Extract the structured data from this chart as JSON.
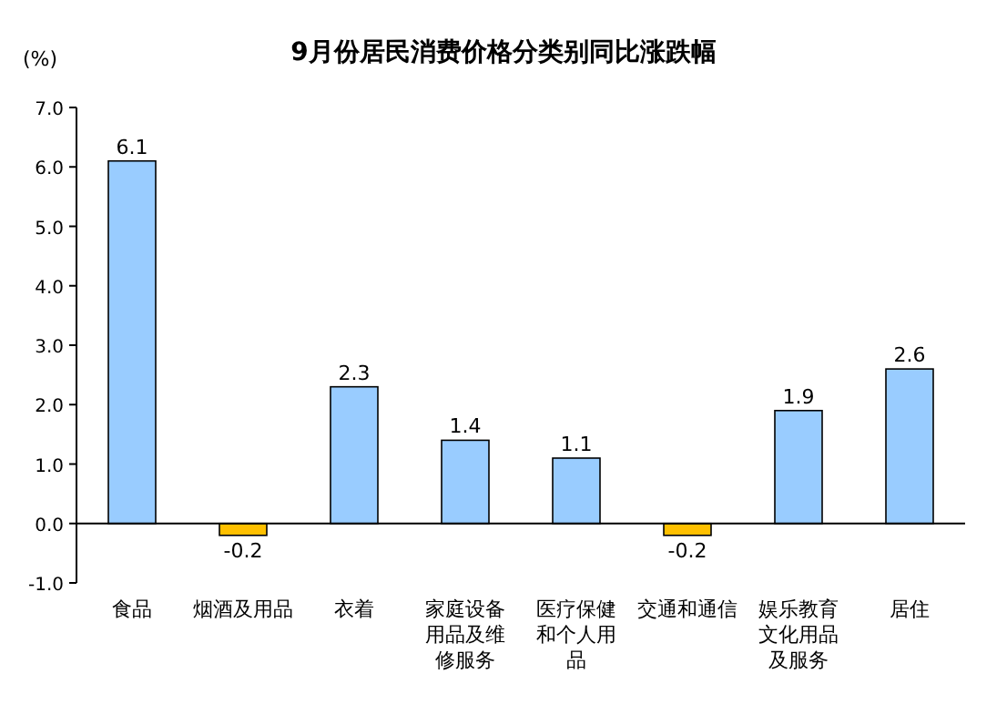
{
  "chart_data": {
    "type": "bar",
    "title": "9月份居民消费价格分类别同比涨跌幅",
    "ylabel": "(%)",
    "categories": [
      "食品",
      "烟酒及用品",
      "衣着",
      "家庭设备用品及维修服务",
      "医疗保健和个人用品",
      "交通和通信",
      "娱乐教育文化用品及服务",
      "居住"
    ],
    "values": [
      6.1,
      -0.2,
      2.3,
      1.4,
      1.1,
      -0.2,
      1.9,
      2.6
    ],
    "colors": [
      "#99ccff",
      "#ffc000",
      "#99ccff",
      "#99ccff",
      "#99ccff",
      "#ffc000",
      "#99ccff",
      "#99ccff"
    ],
    "ylim": [
      -1,
      7
    ],
    "yticks": [
      {
        "value": -1,
        "label": "-1.0"
      },
      {
        "value": 0,
        "label": "0.0"
      },
      {
        "value": 1,
        "label": "1.0"
      },
      {
        "value": 2,
        "label": "2.0"
      },
      {
        "value": 3,
        "label": "3.0"
      },
      {
        "value": 4,
        "label": "4.0"
      },
      {
        "value": 5,
        "label": "5.0"
      },
      {
        "value": 6,
        "label": "6.0"
      },
      {
        "value": 7,
        "label": "7.0"
      }
    ],
    "data_labels": true
  }
}
